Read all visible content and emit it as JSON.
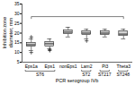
{
  "chart_data": {
    "type": "box",
    "categories": [
      "Eps1a",
      "Eps1",
      "nonEps1",
      "Lam2",
      "Pi3",
      "Theta3"
    ],
    "xlabel": "PCR serogroup IVb",
    "ylabel": "Inhibition zone\ndiameter, mm",
    "ylim": [
      5,
      35
    ],
    "yticks": [
      5,
      10,
      15,
      20,
      25,
      30,
      35
    ],
    "color": "#d3d3d3",
    "boxes": [
      {
        "q1": 13,
        "median": 14,
        "q3": 15,
        "whislo": 11,
        "whishi": 17,
        "fliers": [
          10,
          18
        ]
      },
      {
        "q1": 13,
        "median": 14.5,
        "q3": 15.5,
        "whislo": 12,
        "whishi": 17,
        "fliers": [
          11,
          11.5
        ]
      },
      {
        "q1": 19.5,
        "median": 20.5,
        "q3": 21.5,
        "whislo": 18,
        "whishi": 23,
        "fliers": []
      },
      {
        "q1": 19,
        "median": 20,
        "q3": 21,
        "whislo": 17,
        "whishi": 22,
        "fliers": [
          16
        ]
      },
      {
        "q1": 19,
        "median": 20,
        "q3": 21,
        "whislo": 18,
        "whishi": 22,
        "fliers": []
      },
      {
        "q1": 18.5,
        "median": 19.5,
        "q3": 21,
        "whislo": 17,
        "whishi": 22,
        "fliers": []
      }
    ],
    "significance": {
      "groups": [
        "Eps1a",
        "Theta3"
      ],
      "y1": 27.5,
      "y2": 28.5
    },
    "st_brackets": [
      {
        "label": "ST6",
        "groups": [
          "Eps1a",
          "Eps1"
        ]
      },
      {
        "label": "ST2",
        "groups": [
          "Lam2"
        ]
      },
      {
        "label": "ST217",
        "groups": [
          "Pi3"
        ]
      },
      {
        "label": "ST248",
        "groups": [
          "Theta3"
        ]
      }
    ]
  }
}
